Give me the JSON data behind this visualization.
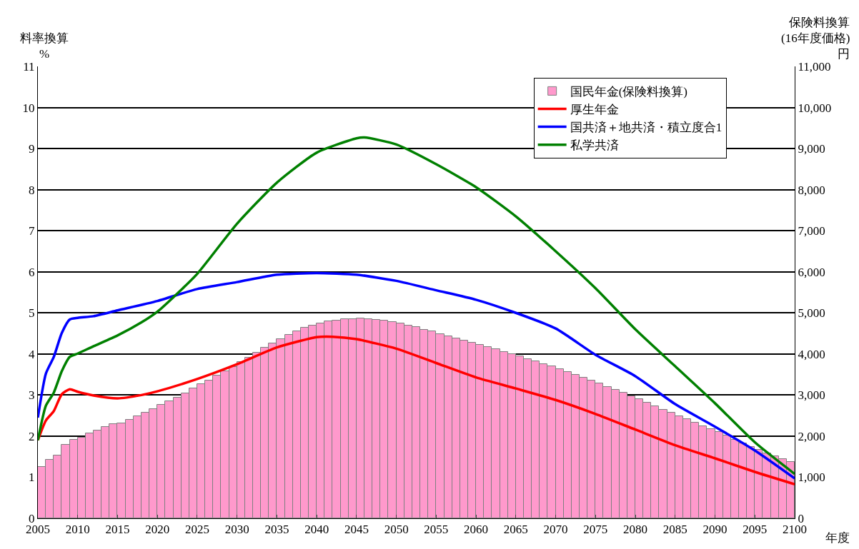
{
  "chart_data": {
    "type": "bar",
    "ylabel": "料率換算\n%",
    "y2label": "保険料換算\n(16年度価格)\n円",
    "xlabel": "年度",
    "xlim": [
      2005,
      2100
    ],
    "xticks": [
      2005,
      2010,
      2015,
      2020,
      2025,
      2030,
      2035,
      2040,
      2045,
      2050,
      2055,
      2060,
      2065,
      2070,
      2075,
      2080,
      2085,
      2090,
      2095,
      2100
    ],
    "ylim": [
      0,
      11
    ],
    "yticks": [
      0,
      1,
      2,
      3,
      4,
      5,
      6,
      7,
      8,
      9,
      10,
      11
    ],
    "y2lim": [
      0,
      11000
    ],
    "y2ticks": [
      0,
      {
        "value": 1000,
        "label": "1,000"
      },
      {
        "value": 2000,
        "label": "2,000"
      },
      {
        "value": 3000,
        "label": "3,000"
      },
      {
        "value": 4000,
        "label": "4,000"
      },
      {
        "value": 5000,
        "label": "5,000"
      },
      {
        "value": 6000,
        "label": "6,000"
      },
      {
        "value": 7000,
        "label": "7,000"
      },
      {
        "value": 8000,
        "label": "8,000"
      },
      {
        "value": 9000,
        "label": "9,000"
      },
      {
        "value": 10000,
        "label": "10,000"
      },
      {
        "value": 11000,
        "label": "11,000"
      }
    ],
    "grid": "y",
    "legend": "top right",
    "marker": "none",
    "line_style": "solid",
    "series": [
      {
        "name": "国民年金(保険料換算)",
        "axis": "y2",
        "color": "#ff99cc",
        "x": [
          2005.5,
          2006.5,
          2007.5,
          2008.5,
          2009.5,
          2010.5,
          2011.5,
          2012.5,
          2013.5,
          2014.5,
          2015.5,
          2016.5,
          2017.5,
          2018.5,
          2019.5,
          2020.5,
          2021.5,
          2022.5,
          2023.5,
          2024.5,
          2025.5,
          2026.5,
          2027.5,
          2028.5,
          2029.5,
          2030.5,
          2031.5,
          2032.5,
          2033.5,
          2034.5,
          2035.5,
          2036.5,
          2037.5,
          2038.5,
          2039.5,
          2040.5,
          2041.5,
          2042.5,
          2043.5,
          2044.5,
          2045.5,
          2046.5,
          2047.5,
          2048.5,
          2049.5,
          2050.5,
          2051.5,
          2052.5,
          2053.5,
          2054.5,
          2055.5,
          2056.5,
          2057.5,
          2058.5,
          2059.5,
          2060.5,
          2061.5,
          2062.5,
          2063.5,
          2064.5,
          2065.5,
          2066.5,
          2067.5,
          2068.5,
          2069.5,
          2070.5,
          2071.5,
          2072.5,
          2073.5,
          2074.5,
          2075.5,
          2076.5,
          2077.5,
          2078.5,
          2079.5,
          2080.5,
          2081.5,
          2082.5,
          2083.5,
          2084.5,
          2085.5,
          2086.5,
          2087.5,
          2088.5,
          2089.5,
          2090.5,
          2091.5,
          2092.5,
          2093.5,
          2094.5,
          2095.5,
          2096.5,
          2097.5,
          2098.5,
          2099.5
        ],
        "values": [
          1250,
          1430,
          1530,
          1790,
          1910,
          1970,
          2070,
          2140,
          2230,
          2290,
          2310,
          2400,
          2480,
          2570,
          2660,
          2760,
          2850,
          2940,
          3040,
          3160,
          3270,
          3360,
          3470,
          3580,
          3680,
          3800,
          3910,
          4040,
          4150,
          4260,
          4370,
          4470,
          4560,
          4640,
          4700,
          4750,
          4790,
          4820,
          4840,
          4850,
          4860,
          4850,
          4830,
          4810,
          4780,
          4740,
          4700,
          4650,
          4590,
          4550,
          4490,
          4440,
          4380,
          4330,
          4270,
          4220,
          4170,
          4110,
          4050,
          4000,
          3940,
          3880,
          3830,
          3750,
          3710,
          3630,
          3570,
          3500,
          3430,
          3350,
          3280,
          3200,
          3120,
          3050,
          2970,
          2900,
          2820,
          2730,
          2650,
          2570,
          2490,
          2420,
          2330,
          2250,
          2180,
          2100,
          2020,
          1920,
          1830,
          1740,
          1660,
          1590,
          1520,
          1450,
          1370
        ]
      },
      {
        "name": "厚生年金",
        "type": "line",
        "axis": "y",
        "color": "#ff0000",
        "x": [
          2005,
          2006,
          2007,
          2008,
          2009,
          2010,
          2012,
          2015,
          2018,
          2020,
          2025,
          2030,
          2035,
          2040,
          2042,
          2045,
          2050,
          2055,
          2060,
          2065,
          2070,
          2075,
          2080,
          2085,
          2090,
          2095,
          2100
        ],
        "values": [
          1.9,
          2.38,
          2.61,
          3.02,
          3.14,
          3.08,
          2.99,
          2.92,
          3.0,
          3.09,
          3.39,
          3.75,
          4.16,
          4.41,
          4.42,
          4.36,
          4.13,
          3.78,
          3.43,
          3.16,
          2.88,
          2.54,
          2.16,
          1.78,
          1.46,
          1.13,
          0.83
        ]
      },
      {
        "name": "国共済＋地共済・積立度合1",
        "type": "line",
        "axis": "y",
        "color": "#0000ff",
        "x": [
          2005,
          2006,
          2007,
          2008,
          2009,
          2010,
          2012,
          2015,
          2020,
          2025,
          2030,
          2035,
          2040,
          2045,
          2050,
          2055,
          2060,
          2065,
          2070,
          2075,
          2080,
          2085,
          2090,
          2095,
          2100
        ],
        "values": [
          2.45,
          3.52,
          3.93,
          4.51,
          4.84,
          4.88,
          4.92,
          5.06,
          5.29,
          5.58,
          5.75,
          5.93,
          5.97,
          5.93,
          5.78,
          5.55,
          5.32,
          5.0,
          4.62,
          3.98,
          3.46,
          2.78,
          2.23,
          1.65,
          0.97
        ]
      },
      {
        "name": "私学共済",
        "type": "line",
        "axis": "y",
        "color": "#008000",
        "x": [
          2005,
          2006,
          2007,
          2008,
          2009,
          2010,
          2012,
          2015,
          2018,
          2020,
          2022,
          2025,
          2030,
          2035,
          2040,
          2045,
          2046,
          2050,
          2055,
          2060,
          2065,
          2070,
          2075,
          2080,
          2085,
          2090,
          2095,
          2100
        ],
        "values": [
          1.9,
          2.74,
          3.06,
          3.58,
          3.93,
          4.01,
          4.19,
          4.45,
          4.77,
          5.03,
          5.38,
          5.95,
          7.17,
          8.17,
          8.9,
          9.25,
          9.27,
          9.1,
          8.62,
          8.06,
          7.35,
          6.5,
          5.6,
          4.6,
          3.7,
          2.8,
          1.85,
          1.08
        ]
      }
    ]
  }
}
